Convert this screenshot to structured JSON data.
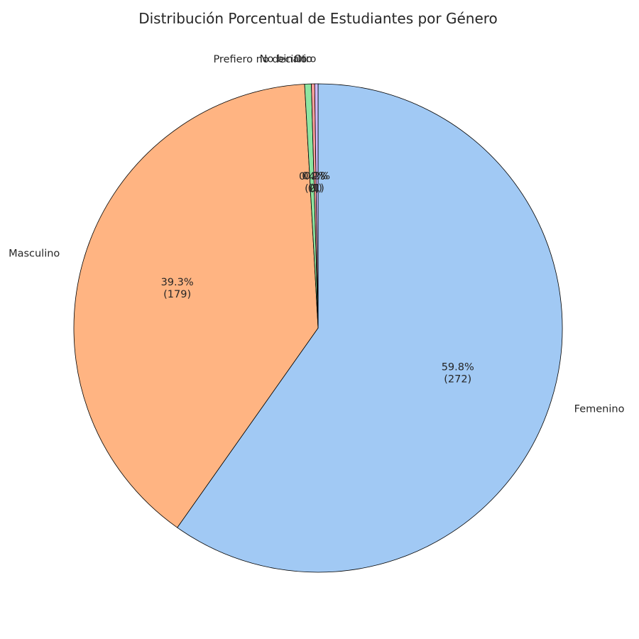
{
  "chart_data": {
    "type": "pie",
    "title": "Distribución Porcentual de Estudiantes por Género",
    "start_angle_deg": 90,
    "direction": "clockwise",
    "slices": [
      {
        "label": "Femenino",
        "value": 272,
        "percent_label": "59.8%",
        "count_label": "(272)",
        "color": "#a1c9f4"
      },
      {
        "label": "Masculino",
        "value": 179,
        "percent_label": "39.3%",
        "count_label": "(179)",
        "color": "#ffb482"
      },
      {
        "label": "Prefiero no decirlo",
        "value": 2,
        "percent_label": "0.4%",
        "count_label": "(2)",
        "color": "#8de5a1"
      },
      {
        "label": "No binario",
        "value": 1,
        "percent_label": "0.2%",
        "count_label": "(1)",
        "color": "#ff9f9b"
      },
      {
        "label": "Otro",
        "value": 1,
        "percent_label": "0.2%",
        "count_label": "(1)",
        "color": "#d0bbff"
      }
    ],
    "edge_color": "#000000"
  }
}
